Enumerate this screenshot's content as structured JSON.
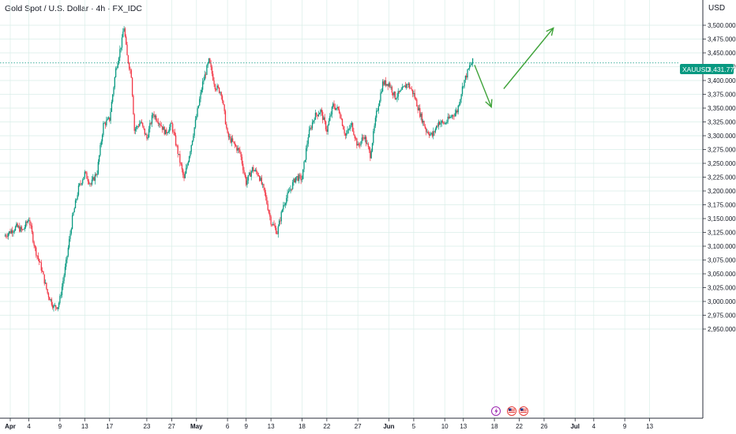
{
  "header": {
    "title": "Gold Spot / U.S. Dollar · 4h · FX_IDC",
    "currency": "USD"
  },
  "last_price": {
    "symbol": "XAUUSD",
    "value": "3,431.775"
  },
  "colors": {
    "up": "#089981",
    "down": "#f23645",
    "grid": "#d9eee8",
    "projection": "#3fa33a",
    "dark_line": "#2a2e39",
    "last_label": "#089981"
  },
  "event_icons": [
    "flash-icon",
    "us-flag-icon",
    "us-flag-icon"
  ],
  "chart_data": {
    "type": "candlestick",
    "timeframe": "4h",
    "ylim": [
      2930,
      3530
    ],
    "y_ticks": [
      "3,500.000",
      "3,475.000",
      "3,450.000",
      "3,425.000",
      "3,400.000",
      "3,375.000",
      "3,350.000",
      "3,325.000",
      "3,300.000",
      "3,275.000",
      "3,250.000",
      "3,225.000",
      "3,200.000",
      "3,175.000",
      "3,150.000",
      "3,125.000",
      "3,100.000",
      "3,075.000",
      "3,050.000",
      "3,025.000",
      "3,000.000",
      "2,975.000",
      "2,950.000"
    ],
    "x_ticks": [
      {
        "label": "Apr",
        "day": 0,
        "bold": true
      },
      {
        "label": "4",
        "day": 3
      },
      {
        "label": "9",
        "day": 8
      },
      {
        "label": "13",
        "day": 12
      },
      {
        "label": "17",
        "day": 16
      },
      {
        "label": "23",
        "day": 22
      },
      {
        "label": "27",
        "day": 26
      },
      {
        "label": "May",
        "day": 30,
        "bold": true
      },
      {
        "label": "6",
        "day": 35
      },
      {
        "label": "9",
        "day": 38
      },
      {
        "label": "13",
        "day": 42
      },
      {
        "label": "18",
        "day": 47
      },
      {
        "label": "22",
        "day": 51
      },
      {
        "label": "27",
        "day": 56
      },
      {
        "label": "Jun",
        "day": 61,
        "bold": true
      },
      {
        "label": "5",
        "day": 65
      },
      {
        "label": "10",
        "day": 70
      },
      {
        "label": "13",
        "day": 73
      },
      {
        "label": "18",
        "day": 78
      },
      {
        "label": "22",
        "day": 82
      },
      {
        "label": "26",
        "day": 86
      },
      {
        "label": "Jul",
        "day": 91,
        "bold": true
      },
      {
        "label": "4",
        "day": 94
      },
      {
        "label": "9",
        "day": 99
      },
      {
        "label": "13",
        "day": 103
      }
    ],
    "anchors": [
      [
        -1,
        3118
      ],
      [
        1,
        3135
      ],
      [
        2,
        3128
      ],
      [
        3,
        3150
      ],
      [
        4,
        3095
      ],
      [
        5,
        3060
      ],
      [
        6,
        3015
      ],
      [
        7,
        2990
      ],
      [
        7.7,
        2992
      ],
      [
        8,
        3005
      ],
      [
        9,
        3070
      ],
      [
        10,
        3150
      ],
      [
        11,
        3205
      ],
      [
        12,
        3232
      ],
      [
        13,
        3212
      ],
      [
        14,
        3235
      ],
      [
        15,
        3320
      ],
      [
        16,
        3330
      ],
      [
        17,
        3420
      ],
      [
        18,
        3472
      ],
      [
        18.3,
        3500
      ],
      [
        18.8,
        3445
      ],
      [
        19.5,
        3410
      ],
      [
        20,
        3310
      ],
      [
        21,
        3325
      ],
      [
        22,
        3295
      ],
      [
        23,
        3340
      ],
      [
        24,
        3325
      ],
      [
        25,
        3305
      ],
      [
        26,
        3320
      ],
      [
        27,
        3270
      ],
      [
        28,
        3220
      ],
      [
        29,
        3275
      ],
      [
        30,
        3335
      ],
      [
        31,
        3395
      ],
      [
        32,
        3435
      ],
      [
        33,
        3390
      ],
      [
        34,
        3378
      ],
      [
        35,
        3300
      ],
      [
        36,
        3285
      ],
      [
        37,
        3270
      ],
      [
        38,
        3215
      ],
      [
        39,
        3240
      ],
      [
        40,
        3230
      ],
      [
        41,
        3195
      ],
      [
        42,
        3145
      ],
      [
        43,
        3125
      ],
      [
        44,
        3175
      ],
      [
        45,
        3200
      ],
      [
        46,
        3225
      ],
      [
        47,
        3222
      ],
      [
        48,
        3300
      ],
      [
        49,
        3335
      ],
      [
        50,
        3345
      ],
      [
        51,
        3310
      ],
      [
        52,
        3355
      ],
      [
        53,
        3345
      ],
      [
        54,
        3300
      ],
      [
        55,
        3320
      ],
      [
        56,
        3280
      ],
      [
        57,
        3300
      ],
      [
        58,
        3265
      ],
      [
        59,
        3340
      ],
      [
        60,
        3395
      ],
      [
        61,
        3395
      ],
      [
        62,
        3370
      ],
      [
        63,
        3380
      ],
      [
        64,
        3395
      ],
      [
        65,
        3375
      ],
      [
        66,
        3340
      ],
      [
        67,
        3310
      ],
      [
        68,
        3300
      ],
      [
        69,
        3325
      ],
      [
        70,
        3322
      ],
      [
        71,
        3335
      ],
      [
        72,
        3345
      ],
      [
        73,
        3395
      ],
      [
        74,
        3425
      ],
      [
        74.6,
        3436
      ]
    ],
    "projection": [
      {
        "day": 74.8,
        "price": 3428
      },
      {
        "day": 77.5,
        "price": 3352
      },
      {
        "day": 79.5,
        "price": 3385
      },
      {
        "day": 87.5,
        "price": 3495
      }
    ],
    "last_price_value": 3431.775
  }
}
